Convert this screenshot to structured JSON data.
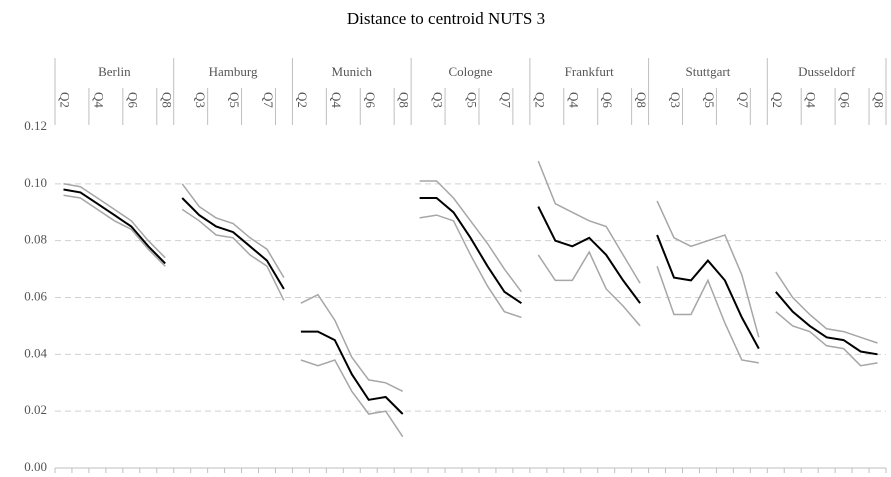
{
  "chart_data": {
    "type": "line",
    "title": "Distance to centroid NUTS 3",
    "groups": [
      {
        "name": "Berlin",
        "categories": [
          "Q2",
          null,
          "Q4",
          null,
          "Q6",
          null,
          "Q8"
        ]
      },
      {
        "name": "Hamburg",
        "categories": [
          null,
          "Q3",
          null,
          "Q5",
          null,
          "Q7",
          null
        ]
      },
      {
        "name": "Munich",
        "categories": [
          "Q2",
          null,
          "Q4",
          null,
          "Q6",
          null,
          "Q8"
        ]
      },
      {
        "name": "Cologne",
        "categories": [
          null,
          "Q3",
          null,
          "Q5",
          null,
          "Q7",
          null
        ]
      },
      {
        "name": "Frankfurt",
        "categories": [
          "Q2",
          null,
          "Q4",
          null,
          "Q6",
          null,
          "Q8"
        ]
      },
      {
        "name": "Stuttgart",
        "categories": [
          null,
          "Q3",
          null,
          "Q5",
          null,
          "Q7",
          null
        ]
      },
      {
        "name": "Dusseldorf",
        "categories": [
          "Q2",
          null,
          "Q4",
          null,
          "Q6",
          null,
          "Q8"
        ]
      }
    ],
    "series": [
      {
        "color": "#a6a6a6",
        "values": [
          [
            0.1,
            0.099,
            0.095,
            0.091,
            0.087,
            0.08,
            0.074
          ],
          [
            0.1,
            0.092,
            0.088,
            0.086,
            0.081,
            0.077,
            0.067
          ],
          [
            0.058,
            0.061,
            0.052,
            0.039,
            0.031,
            0.03,
            0.027
          ],
          [
            0.101,
            0.101,
            0.095,
            0.087,
            0.079,
            0.07,
            0.062
          ],
          [
            0.108,
            0.093,
            0.09,
            0.087,
            0.085,
            0.075,
            0.065
          ],
          [
            0.094,
            0.081,
            0.078,
            0.08,
            0.082,
            0.068,
            0.046
          ],
          [
            0.069,
            0.06,
            0.054,
            0.049,
            0.048,
            0.046,
            0.044
          ]
        ]
      },
      {
        "color": "#000000",
        "values": [
          [
            0.098,
            0.097,
            0.093,
            0.089,
            0.085,
            0.078,
            0.072
          ],
          [
            0.095,
            0.089,
            0.085,
            0.083,
            0.078,
            0.073,
            0.063
          ],
          [
            0.048,
            0.048,
            0.045,
            0.033,
            0.024,
            0.025,
            0.019
          ],
          [
            0.095,
            0.095,
            0.09,
            0.081,
            0.071,
            0.062,
            0.058
          ],
          [
            0.092,
            0.08,
            0.078,
            0.081,
            0.075,
            0.066,
            0.058
          ],
          [
            0.082,
            0.067,
            0.066,
            0.073,
            0.066,
            0.053,
            0.042
          ],
          [
            0.062,
            0.055,
            0.05,
            0.046,
            0.045,
            0.041,
            0.04
          ]
        ]
      },
      {
        "color": "#a6a6a6",
        "values": [
          [
            0.096,
            0.095,
            0.091,
            0.087,
            0.084,
            0.077,
            0.071
          ],
          [
            0.091,
            0.087,
            0.082,
            0.081,
            0.075,
            0.071,
            0.059
          ],
          [
            0.038,
            0.036,
            0.038,
            0.027,
            0.019,
            0.02,
            0.011
          ],
          [
            0.088,
            0.089,
            0.087,
            0.075,
            0.064,
            0.055,
            0.053
          ],
          [
            0.075,
            0.066,
            0.066,
            0.076,
            0.063,
            0.057,
            0.05
          ],
          [
            0.071,
            0.054,
            0.054,
            0.066,
            0.051,
            0.038,
            0.037
          ],
          [
            0.055,
            0.05,
            0.048,
            0.043,
            0.042,
            0.036,
            0.037
          ]
        ]
      }
    ],
    "ylim": [
      0,
      0.12
    ],
    "yticks": [
      {
        "value": 0,
        "label": "0.00"
      },
      {
        "value": 0.02,
        "label": "0.02"
      },
      {
        "value": 0.04,
        "label": "0.04"
      },
      {
        "value": 0.06,
        "label": "0.06"
      },
      {
        "value": 0.08,
        "label": "0.08"
      },
      {
        "value": 0.1,
        "label": "0.10"
      },
      {
        "value": 0.12,
        "label": "0.12"
      }
    ],
    "grid": true
  }
}
